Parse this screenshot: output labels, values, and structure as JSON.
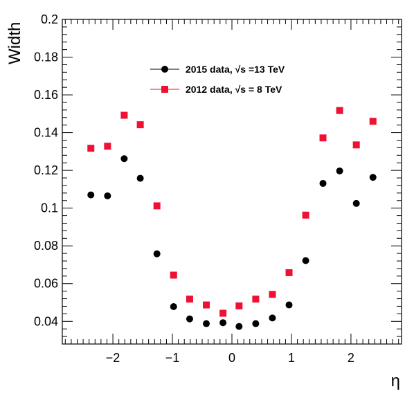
{
  "chart_data": {
    "type": "scatter",
    "xlabel": "η",
    "ylabel": "Width",
    "xlim": [
      -2.85,
      2.85
    ],
    "ylim": [
      0.028,
      0.2
    ],
    "x_ticks": [
      -2,
      -1,
      0,
      1,
      2
    ],
    "x_tick_labels": [
      "−2",
      "−1",
      "0",
      "1",
      "2"
    ],
    "y_ticks": [
      0.04,
      0.06,
      0.08,
      0.1,
      0.12,
      0.14,
      0.16,
      0.18,
      0.2
    ],
    "y_tick_labels": [
      "0.04",
      "0.06",
      "0.08",
      "0.1",
      "0.12",
      "0.14",
      "0.16",
      "0.18",
      "0.2"
    ],
    "grid": false,
    "legend_position": "top-center",
    "x": [
      -2.37,
      -2.09,
      -1.81,
      -1.54,
      -1.26,
      -0.98,
      -0.71,
      -0.43,
      -0.15,
      0.12,
      0.4,
      0.68,
      0.96,
      1.24,
      1.53,
      1.81,
      2.09,
      2.37
    ],
    "series": [
      {
        "name": "2015 data, √s =13 TeV",
        "marker": "circle",
        "color": "#000000",
        "values": [
          0.107,
          0.1065,
          0.1262,
          0.1158,
          0.0758,
          0.0478,
          0.0413,
          0.0388,
          0.0393,
          0.0373,
          0.0388,
          0.0418,
          0.0487,
          0.0722,
          0.1131,
          0.1197,
          0.1025,
          0.1163
        ]
      },
      {
        "name": "2012 data, √s = 8 TeV",
        "marker": "square",
        "color": "#ee1133",
        "values": [
          0.1317,
          0.1328,
          0.1492,
          0.1442,
          0.1012,
          0.0645,
          0.0518,
          0.0487,
          0.0443,
          0.0482,
          0.0518,
          0.0543,
          0.0658,
          0.0963,
          0.1372,
          0.1517,
          0.1335,
          0.146
        ]
      }
    ]
  }
}
